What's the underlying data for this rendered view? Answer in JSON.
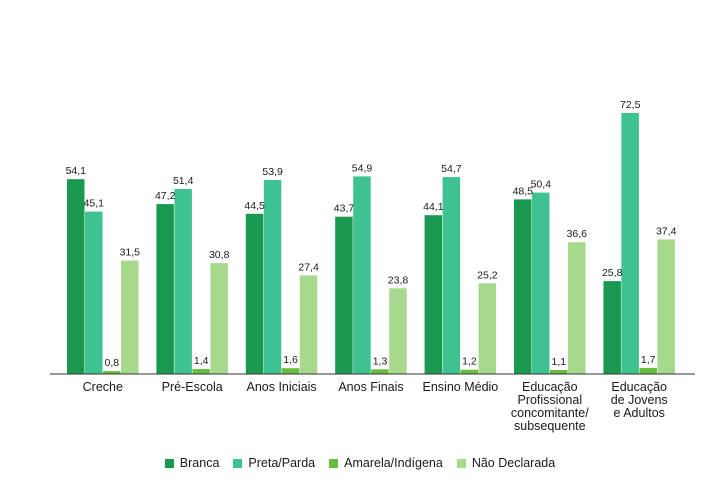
{
  "chart_data": {
    "type": "bar",
    "categories": [
      [
        "Creche"
      ],
      [
        "Pré-Escola"
      ],
      [
        "Anos Iniciais"
      ],
      [
        "Anos Finais"
      ],
      [
        "Ensino Médio"
      ],
      [
        "Educação",
        "Profissional",
        "concomitante/",
        "subsequente"
      ],
      [
        "Educação",
        "de Jovens",
        "e Adultos"
      ]
    ],
    "series": [
      {
        "name": "Branca",
        "color": "#1a9850",
        "values": [
          54.1,
          47.2,
          44.5,
          43.7,
          44.1,
          48.5,
          25.8
        ],
        "labels": [
          "54,1",
          "47,2",
          "44,5",
          "43,7",
          "44,1",
          "48,5",
          "25,8"
        ]
      },
      {
        "name": "Preta/Parda",
        "color": "#3ec28f",
        "values": [
          45.1,
          51.4,
          53.9,
          54.9,
          54.7,
          50.4,
          72.5
        ],
        "labels": [
          "45,1",
          "51,4",
          "53,9",
          "54,9",
          "54,7",
          "50,4",
          "72,5"
        ]
      },
      {
        "name": "Amarela/Indígena",
        "color": "#66bd3f",
        "values": [
          0.8,
          1.4,
          1.6,
          1.3,
          1.2,
          1.1,
          1.7
        ],
        "labels": [
          "0,8",
          "1,4",
          "1,6",
          "1,3",
          "1,2",
          "1,1",
          "1,7"
        ]
      },
      {
        "name": "Não Declarada",
        "color": "#a6d98b",
        "values": [
          31.5,
          30.8,
          27.4,
          23.8,
          25.2,
          36.6,
          37.4
        ],
        "labels": [
          "31,5",
          "30,8",
          "27,4",
          "23,8",
          "25,2",
          "36,6",
          "37,4"
        ]
      }
    ],
    "ylim": [
      0,
      75
    ],
    "grid": false,
    "legend_position": "bottom"
  }
}
